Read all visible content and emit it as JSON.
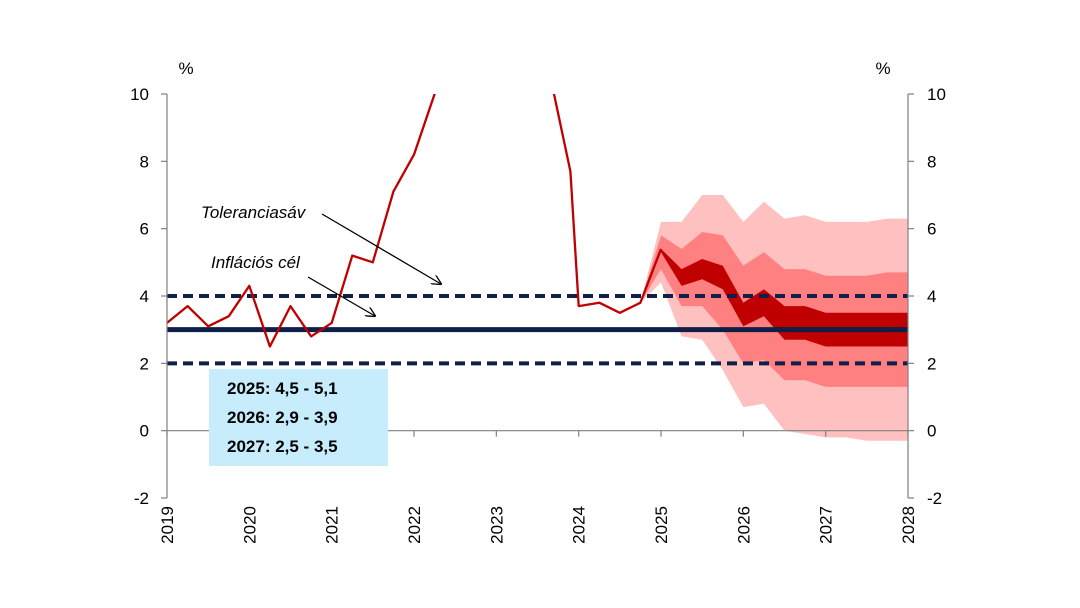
{
  "chart_data": {
    "type": "line",
    "unit_left": "%",
    "unit_right": "%",
    "y_ticks": [
      "10",
      "8",
      "6",
      "4",
      "2",
      "0",
      "-2"
    ],
    "ylim": [
      -2,
      10
    ],
    "x_ticks": [
      "2019",
      "2020",
      "2021",
      "2022",
      "2023",
      "2024",
      "2025",
      "2026",
      "2027",
      "2028"
    ],
    "xlim": [
      2019,
      2028
    ],
    "grid": false,
    "colors": {
      "actual": "#c00000",
      "band_outer": "#ffc0c0",
      "band_middle": "#ff8080",
      "band_inner": "#c00000",
      "target": "#0f1f47",
      "tolerance": "#0f1f47"
    },
    "series_actual": {
      "x": [
        2019.0,
        2019.25,
        2019.5,
        2019.75,
        2020.0,
        2020.25,
        2020.5,
        2020.75,
        2021.0,
        2021.25,
        2021.5,
        2021.75,
        2022.0,
        2022.25,
        2022.35,
        2023.6,
        2023.7,
        2023.9,
        2024.0,
        2024.25,
        2024.5,
        2024.75,
        2025.0
      ],
      "y": [
        3.2,
        3.7,
        3.1,
        3.4,
        4.3,
        2.5,
        3.7,
        2.8,
        3.2,
        5.2,
        5.0,
        7.1,
        8.2,
        10.0,
        10.5,
        10.5,
        10.0,
        7.7,
        3.7,
        3.8,
        3.5,
        3.8,
        5.4
      ]
    },
    "fan_chart": {
      "x": [
        2024.75,
        2025.0,
        2025.25,
        2025.5,
        2025.75,
        2026.0,
        2026.25,
        2026.5,
        2026.75,
        2027.0,
        2027.25,
        2027.5,
        2027.75,
        2028.0
      ],
      "median": [
        3.8,
        5.4,
        4.6,
        4.9,
        4.5,
        3.6,
        3.9,
        3.3,
        3.3,
        3.0,
        3.0,
        3.0,
        3.0,
        3.0
      ],
      "inner_upper": [
        3.8,
        5.4,
        4.8,
        5.1,
        4.9,
        3.8,
        4.2,
        3.7,
        3.7,
        3.5,
        3.5,
        3.5,
        3.5,
        3.5
      ],
      "inner_lower": [
        3.8,
        5.3,
        4.3,
        4.5,
        4.2,
        3.1,
        3.4,
        2.7,
        2.7,
        2.5,
        2.5,
        2.5,
        2.5,
        2.5
      ],
      "middle_upper": [
        3.8,
        5.8,
        5.4,
        5.9,
        5.8,
        4.9,
        5.3,
        4.8,
        4.8,
        4.6,
        4.6,
        4.6,
        4.7,
        4.7
      ],
      "middle_lower": [
        3.8,
        4.8,
        3.7,
        3.7,
        3.0,
        2.0,
        2.1,
        1.5,
        1.5,
        1.3,
        1.3,
        1.3,
        1.3,
        1.3
      ],
      "outer_upper": [
        3.8,
        6.2,
        6.2,
        7.0,
        7.0,
        6.2,
        6.8,
        6.3,
        6.4,
        6.2,
        6.2,
        6.2,
        6.3,
        6.3
      ],
      "outer_lower": [
        3.8,
        4.4,
        2.8,
        2.7,
        1.8,
        0.7,
        0.8,
        0.0,
        -0.1,
        -0.2,
        -0.2,
        -0.3,
        -0.3,
        -0.3
      ]
    },
    "target_line": 3.0,
    "tolerance_band": [
      2.0,
      4.0
    ],
    "annotations": {
      "tolerance_label": "Toleranciasáv",
      "target_label": "Inflációs cél"
    },
    "forecast_box": {
      "lines": [
        "2025: 4,5 - 5,1",
        "2026: 2,9 - 3,9",
        "2027: 2,5 - 3,5"
      ]
    }
  }
}
